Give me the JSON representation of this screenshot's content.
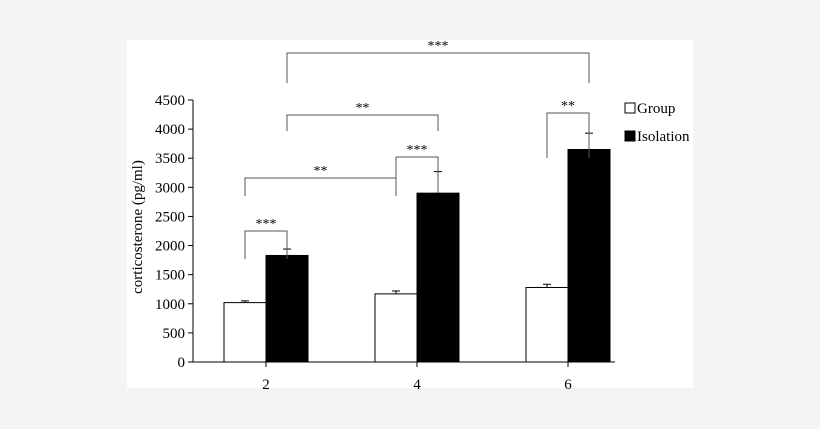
{
  "chart_data": {
    "type": "bar",
    "title": "",
    "xlabel": "",
    "ylabel": "corticosterone (pg/ml)",
    "ylim": [
      0,
      4500
    ],
    "yticks": [
      0,
      500,
      1000,
      1500,
      2000,
      2500,
      3000,
      3500,
      4000,
      4500
    ],
    "categories": [
      "2",
      "4",
      "6"
    ],
    "series": [
      {
        "name": "Group",
        "fill": "#ffffff",
        "values": [
          1020,
          1170,
          1280
        ],
        "errors": [
          30,
          50,
          55
        ]
      },
      {
        "name": "Isolation",
        "fill": "#000000",
        "values": [
          1830,
          2900,
          3650
        ],
        "errors": [
          110,
          370,
          280
        ]
      }
    ],
    "legend": {
      "position": "right"
    },
    "significance": [
      {
        "label": "***",
        "from": [
          0,
          0
        ],
        "to": [
          0,
          1
        ]
      },
      {
        "label": "***",
        "from": [
          1,
          0
        ],
        "to": [
          1,
          1
        ]
      },
      {
        "label": "**",
        "from": [
          2,
          0
        ],
        "to": [
          2,
          1
        ]
      },
      {
        "label": "**",
        "from": [
          0,
          0
        ],
        "to": [
          1,
          0
        ]
      },
      {
        "label": "**",
        "from": [
          0,
          1
        ],
        "to": [
          1,
          1
        ]
      },
      {
        "label": "***",
        "from": [
          0,
          1
        ],
        "to": [
          2,
          1
        ]
      }
    ]
  }
}
